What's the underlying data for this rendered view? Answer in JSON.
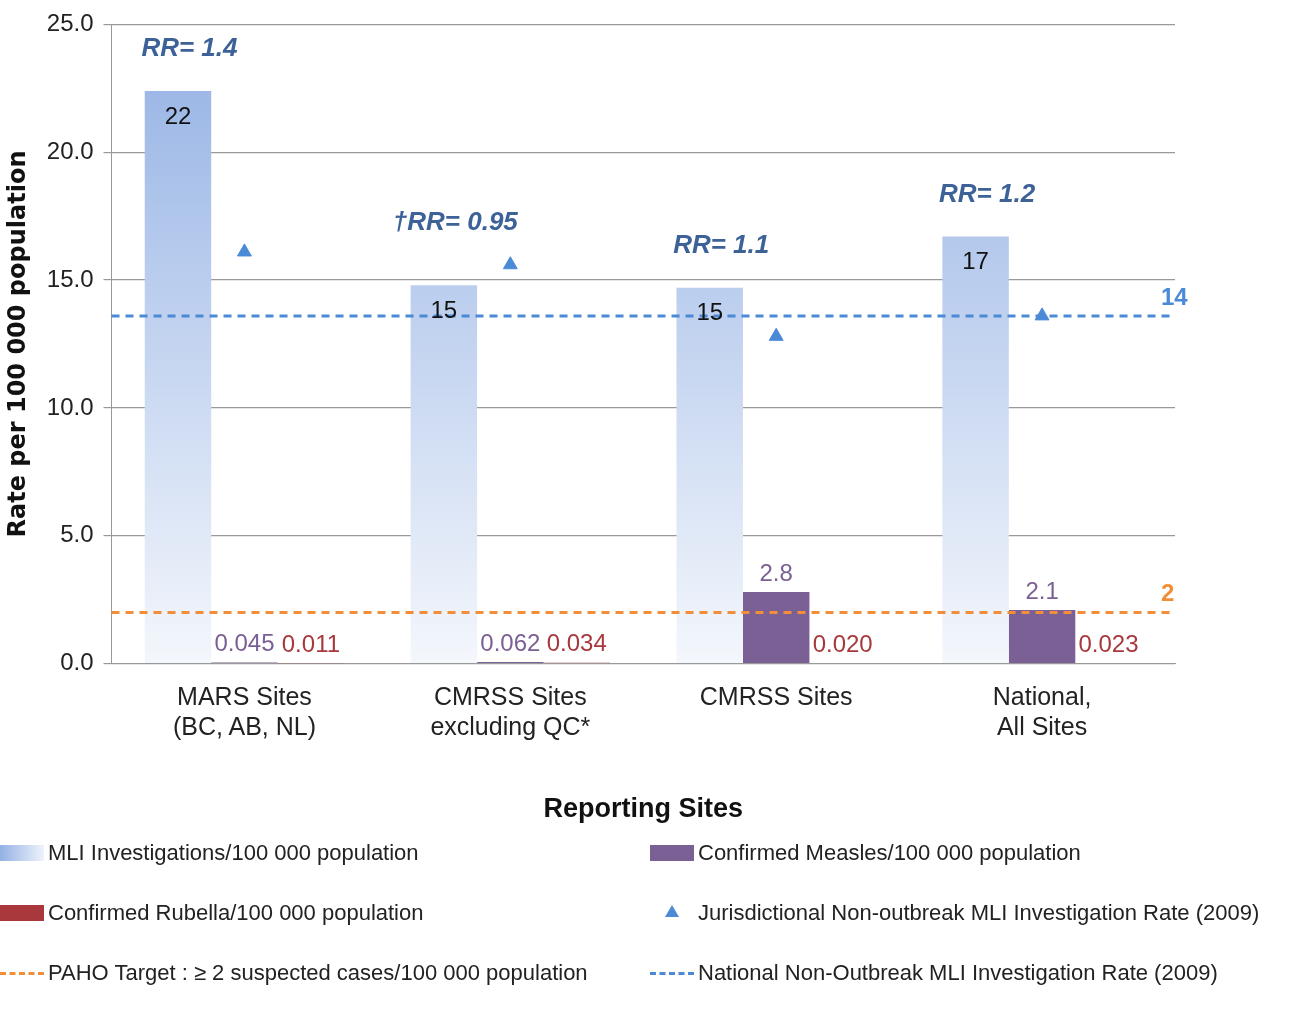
{
  "chart_data": {
    "type": "bar",
    "xlabel": "Reporting Sites",
    "ylabel": "Rate per 100 000 population",
    "categories": [
      "MARS Sites\n(BC, AB, NL)",
      "CMRSS Sites\nexcluding QC*",
      "CMRSS Sites",
      "National,\nAll Sites"
    ],
    "series": [
      {
        "name": "MLI Investigations/100 000 population",
        "color": "#93b1e4",
        "values": [
          22.4,
          14.8,
          14.7,
          16.7
        ],
        "value_labels": [
          "22",
          "15",
          "15",
          "17"
        ]
      },
      {
        "name": "Confirmed Measles/100 000 population",
        "color": "#7a6095",
        "values": [
          0.045,
          0.062,
          2.8,
          2.1
        ],
        "value_labels": [
          "0.045",
          "0.062",
          "2.8",
          "2.1"
        ]
      },
      {
        "name": "Confirmed Rubella/100 000 population",
        "color": "#a8383c",
        "values": [
          0.011,
          0.034,
          0.02,
          0.023
        ],
        "value_labels": [
          "0.011",
          "0.034",
          "0.020",
          "0.023"
        ]
      },
      {
        "name": "Jurisdictional Non-outbreak MLI Investigation Rate (2009)",
        "type": "scatter",
        "color": "#4a8ad6",
        "marker": "triangle",
        "x": [
          "MARS Sites\n(BC, AB, NL)",
          "CMRSS Sites\nexcluding QC*",
          "CMRSS Sites",
          "National,\nAll Sites"
        ],
        "values": [
          16.1,
          15.6,
          12.8,
          13.6
        ]
      }
    ],
    "ref_lines": [
      {
        "axis": "y",
        "value": 2,
        "label": "PAHO Target  : ≥ 2 suspected cases/100 000 population",
        "color": "#f28e3a",
        "line_style": "dashed"
      },
      {
        "axis": "y",
        "value": 13.6,
        "label": "National Non-Outbreak MLI Investigation Rate (2009)",
        "color": "#4a8ad6",
        "line_style": "dashed"
      }
    ],
    "annotations": [
      "RR= 1.4",
      "†RR= 0.95",
      "RR= 1.1",
      "RR= 1.2",
      {
        "text": "2",
        "y": 2
      },
      {
        "text": "14",
        "y": 13.6
      }
    ],
    "ylim": [
      0,
      25
    ],
    "yticks": [
      {
        "value": 0,
        "label": "0.0"
      },
      {
        "value": 5,
        "label": "5.0"
      },
      {
        "value": 10,
        "label": "10.0"
      },
      {
        "value": 15,
        "label": "15.0"
      },
      {
        "value": 20,
        "label": "20.0"
      },
      {
        "value": 25,
        "label": "25.0"
      }
    ],
    "grid": "y",
    "legend": "bottom"
  }
}
